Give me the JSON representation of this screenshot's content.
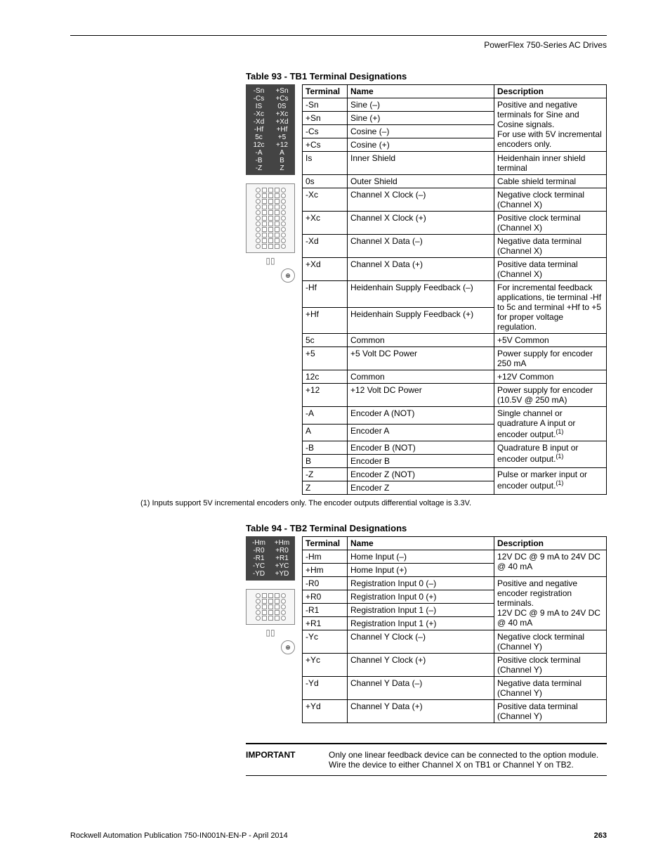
{
  "header": {
    "product": "PowerFlex 750-Series AC Drives"
  },
  "table93": {
    "title": "Table 93 - TB1 Terminal Designations",
    "columns": [
      "Terminal",
      "Name",
      "Description"
    ],
    "illus_labels": [
      "-Sn",
      "+Sn",
      "-Cs",
      "+Cs",
      "IS",
      "0S",
      "-Xc",
      "+Xc",
      "-Xd",
      "+Xd",
      "-Hf",
      "+Hf",
      "5c",
      "+5",
      "12c",
      "+12",
      "-A",
      "A",
      "-B",
      "B",
      "-Z",
      "Z"
    ],
    "rows": [
      [
        "-Sn",
        "Sine (–)",
        "Positive and negative terminals for Sine and Cosine signals.\nFor use with 5V incremental encoders only.",
        4
      ],
      [
        "+Sn",
        "Sine (+)",
        null,
        null
      ],
      [
        "-Cs",
        "Cosine (–)",
        null,
        null
      ],
      [
        "+Cs",
        "Cosine (+)",
        null,
        null
      ],
      [
        "Is",
        "Inner Shield",
        "Heidenhain inner shield terminal",
        1
      ],
      [
        "0s",
        "Outer Shield",
        "Cable shield terminal",
        1
      ],
      [
        "-Xc",
        "Channel X Clock (–)",
        "Negative clock terminal (Channel X)",
        1
      ],
      [
        "+Xc",
        "Channel X Clock (+)",
        "Positive clock terminal (Channel X)",
        1
      ],
      [
        "-Xd",
        "Channel X Data (–)",
        "Negative data terminal (Channel X)",
        1
      ],
      [
        "+Xd",
        "Channel X Data (+)",
        "Positive data terminal (Channel X)",
        1
      ],
      [
        "-Hf",
        "Heidenhain Supply Feedback (–)",
        "For incremental feedback applications, tie terminal -Hf to 5c and terminal +Hf to +5 for proper voltage regulation.",
        2
      ],
      [
        "+Hf",
        "Heidenhain Supply Feedback (+)",
        null,
        null
      ],
      [
        "5c",
        "Common",
        "+5V Common",
        1
      ],
      [
        "+5",
        "+5 Volt DC Power",
        "Power supply for encoder 250 mA",
        1
      ],
      [
        "12c",
        "Common",
        "+12V Common",
        1
      ],
      [
        "+12",
        "+12 Volt DC Power",
        "Power supply for encoder\n(10.5V @ 250 mA)",
        1
      ],
      [
        "-A",
        "Encoder A (NOT)",
        "Single channel or quadrature A input or encoder output.^(1)",
        2
      ],
      [
        "A",
        "Encoder A",
        null,
        null
      ],
      [
        "-B",
        "Encoder B (NOT)",
        "Quadrature B input or encoder output.^(1)",
        2
      ],
      [
        "B",
        "Encoder B",
        null,
        null
      ],
      [
        "-Z",
        "Encoder Z (NOT)",
        "Pulse or marker input or encoder output.^(1)",
        2
      ],
      [
        "Z",
        "Encoder Z",
        null,
        null
      ]
    ],
    "footnote": "(1)   Inputs support 5V incremental encoders only. The encoder outputs differential voltage is 3.3V."
  },
  "table94": {
    "title": "Table 94 - TB2 Terminal Designations",
    "columns": [
      "Terminal",
      "Name",
      "Description"
    ],
    "illus_labels": [
      "-Hm",
      "+Hm",
      "-R0",
      "+R0",
      "-R1",
      "+R1",
      "-YC",
      "+YC",
      "-YD",
      "+YD"
    ],
    "rows": [
      [
        "-Hm",
        "Home Input (–)",
        "12V DC @ 9 mA to 24V DC @ 40 mA",
        2
      ],
      [
        "+Hm",
        "Home Input (+)",
        null,
        null
      ],
      [
        "-R0",
        "Registration Input 0 (–)",
        "Positive and negative encoder registration terminals.\n12V DC @ 9 mA to 24V DC @ 40 mA",
        4
      ],
      [
        "+R0",
        "Registration Input 0 (+)",
        null,
        null
      ],
      [
        "-R1",
        "Registration Input 1 (–)",
        null,
        null
      ],
      [
        "+R1",
        "Registration Input 1 (+)",
        null,
        null
      ],
      [
        "-Yc",
        "Channel Y Clock (–)",
        "Negative clock terminal (Channel Y)",
        1
      ],
      [
        "+Yc",
        "Channel Y Clock (+)",
        "Positive clock terminal (Channel Y)",
        1
      ],
      [
        "-Yd",
        "Channel Y Data (–)",
        "Negative data terminal (Channel Y)",
        1
      ],
      [
        "+Yd",
        "Channel Y Data (+)",
        "Positive data terminal (Channel Y)",
        1
      ]
    ]
  },
  "important": {
    "label": "IMPORTANT",
    "text": "Only one linear feedback device can be connected to the option module. Wire the device to either Channel X on TB1 or Channel Y on TB2."
  },
  "footer": {
    "pub": "Rockwell Automation Publication 750-IN001N-EN-P - April 2014",
    "page": "263"
  }
}
